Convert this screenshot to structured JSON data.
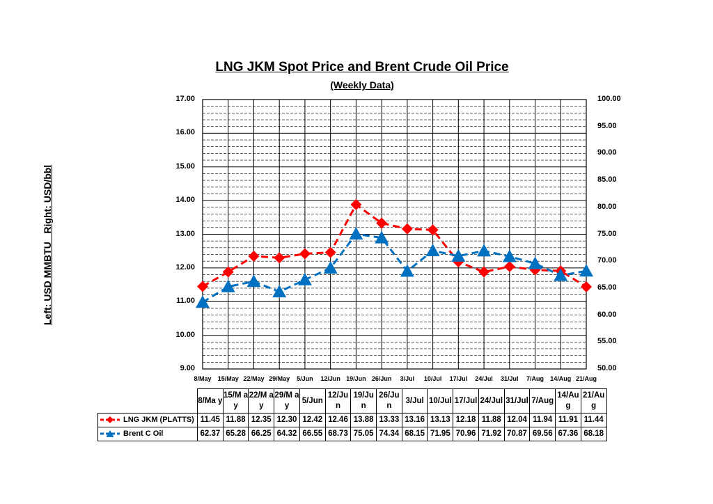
{
  "chart_data": {
    "type": "line",
    "title": "LNG JKM Spot Price and Brent Crude Oil Price",
    "subtitle": "(Weekly Data)",
    "ylabel": "Left: USD MMBTU   Right: USD/bbl",
    "categories": [
      "8/May",
      "15/May",
      "22/May",
      "29/May",
      "5/Jun",
      "12/Jun",
      "19/Jun",
      "26/Jun",
      "3/Jul",
      "10/Jul",
      "17/Jul",
      "24/Jul",
      "31/Jul",
      "7/Aug",
      "14/Aug",
      "21/Aug"
    ],
    "table_headers": [
      "8/Ma y",
      "15/M ay",
      "22/M ay",
      "29/M ay",
      "5/Jun",
      "12/Ju n",
      "19/Ju n",
      "26/Ju n",
      "3/Jul",
      "10/Jul",
      "17/Jul",
      "24/Jul",
      "31/Jul",
      "7/Aug",
      "14/Au g",
      "21/Au g"
    ],
    "series": [
      {
        "name": "LNG JKM (PLATTS)",
        "axis": "left",
        "color": "#ff0000",
        "marker": "diamond",
        "values": [
          11.45,
          11.88,
          12.35,
          12.3,
          12.42,
          12.46,
          13.88,
          13.33,
          13.16,
          13.13,
          12.18,
          11.88,
          12.04,
          11.94,
          11.91,
          11.44
        ]
      },
      {
        "name": "Brent C Oil",
        "axis": "right",
        "color": "#0070c0",
        "marker": "triangle",
        "values": [
          62.37,
          65.28,
          66.25,
          64.32,
          66.55,
          68.73,
          75.05,
          74.34,
          68.15,
          71.95,
          70.96,
          71.92,
          70.87,
          69.56,
          67.36,
          68.18
        ]
      }
    ],
    "ylim_left": [
      9,
      17
    ],
    "ylim_right": [
      50,
      100
    ],
    "yticks_left": [
      "9.00",
      "10.00",
      "11.00",
      "12.00",
      "13.00",
      "14.00",
      "15.00",
      "16.00",
      "17.00"
    ],
    "yticks_right": [
      "50.00",
      "55.00",
      "60.00",
      "65.00",
      "70.00",
      "75.00",
      "80.00",
      "85.00",
      "90.00",
      "95.00",
      "100.00"
    ],
    "table_values": [
      [
        "11.45",
        "11.88",
        "12.35",
        "12.30",
        "12.42",
        "12.46",
        "13.88",
        "13.33",
        "13.16",
        "13.13",
        "12.18",
        "11.88",
        "12.04",
        "11.94",
        "11.91",
        "11.44"
      ],
      [
        "62.37",
        "65.28",
        "66.25",
        "64.32",
        "66.55",
        "68.73",
        "75.05",
        "74.34",
        "68.15",
        "71.95",
        "70.96",
        "71.92",
        "70.87",
        "69.56",
        "67.36",
        "68.18"
      ]
    ],
    "grid": true,
    "legend": "data-table"
  }
}
